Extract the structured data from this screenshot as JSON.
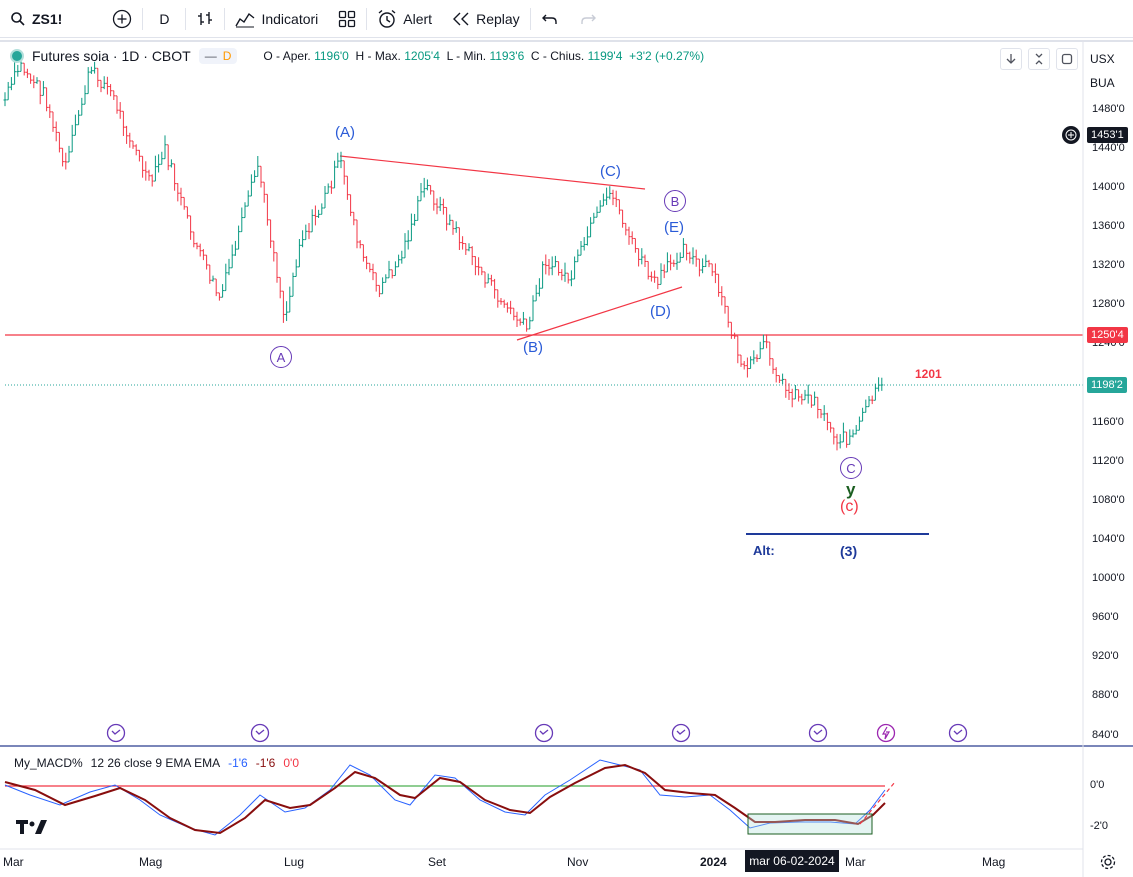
{
  "toolbar": {
    "symbol": "ZS1!",
    "interval": "D",
    "indicators_label": "Indicatori",
    "alert_label": "Alert",
    "replay_label": "Replay"
  },
  "legend": {
    "title": "Futures soia · 1D · CBOT",
    "badge_letter": "D",
    "ohlc": [
      {
        "k": "O - Aper.",
        "v": "1196'0"
      },
      {
        "k": "H - Max.",
        "v": "1205'4"
      },
      {
        "k": "L - Min.",
        "v": "1193'6"
      },
      {
        "k": "C - Chius.",
        "v": "1199'4"
      },
      {
        "k": "",
        "v": "+3'2 (+0.27%)"
      }
    ]
  },
  "price_axis": {
    "currency": "USX",
    "unit": "BUA",
    "ticks": [
      "1480'0",
      "1440'0",
      "1400'0",
      "1360'0",
      "1320'0",
      "1280'0",
      "1240'0",
      "1160'0",
      "1120'0",
      "1080'0",
      "1040'0",
      "1000'0",
      "960'0",
      "920'0",
      "880'0",
      "840'0"
    ],
    "crosshair_price": "1453'1",
    "level_price": "1250'4",
    "last_price": "1198'2"
  },
  "time_axis": {
    "labels": [
      "Mar",
      "Mag",
      "Lug",
      "Set",
      "Nov",
      "2024",
      "Mar",
      "Mag"
    ],
    "crosshair_date": "mar 06-02-2024"
  },
  "annotations": {
    "A_top": "(A)",
    "A_circle": "A",
    "B_paren": "(B)",
    "C_paren": "(C)",
    "B_circle": "B",
    "E_paren": "(E)",
    "D_paren": "(D)",
    "C_circle": "C",
    "y_label": "y",
    "c_red": "(c)",
    "alt_label": "Alt:",
    "three_label": "(3)",
    "price_1201": "1201"
  },
  "macd": {
    "name": "My_MACD%",
    "params": "12 26 close 9 EMA EMA",
    "v1": "-1'6",
    "v2": "-1'6",
    "v3": "0'0",
    "ticks": [
      "0'0",
      "-2'0"
    ]
  },
  "colors": {
    "up": "#089981",
    "down": "#f23645",
    "wave_blue": "#2a5bd7",
    "wave_purple": "#673ab7",
    "trend_red": "#f23645"
  }
}
